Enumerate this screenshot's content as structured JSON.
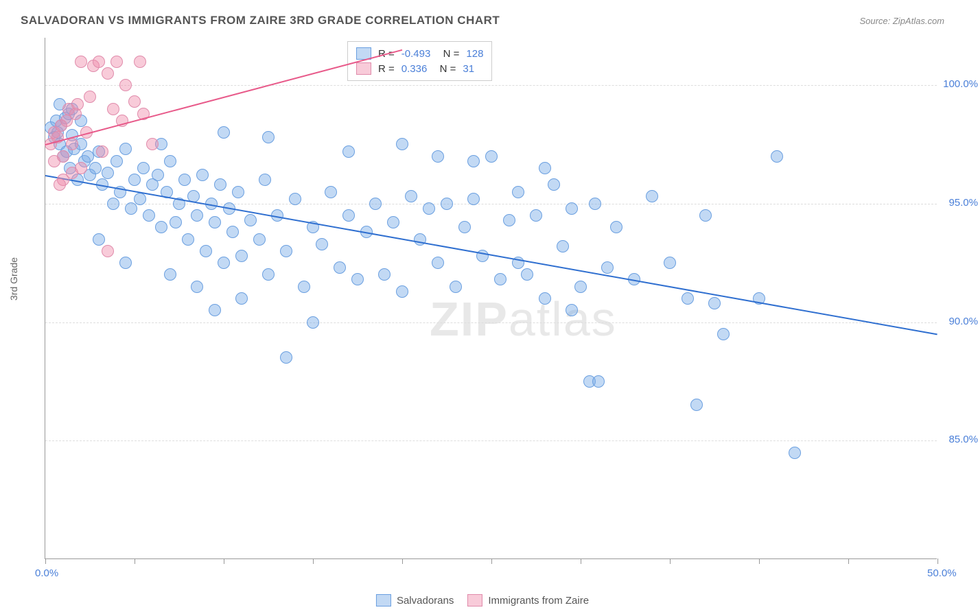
{
  "title": "SALVADORAN VS IMMIGRANTS FROM ZAIRE 3RD GRADE CORRELATION CHART",
  "source": "Source: ZipAtlas.com",
  "ylabel": "3rd Grade",
  "watermark_a": "ZIP",
  "watermark_b": "atlas",
  "chart": {
    "type": "scatter",
    "xlim": [
      0,
      50
    ],
    "ylim": [
      80,
      102
    ],
    "xticks": [
      0,
      5,
      10,
      15,
      20,
      25,
      30,
      35,
      40,
      45,
      50
    ],
    "xtick_labels": {
      "0": "0.0%",
      "50": "50.0%"
    },
    "yticks": [
      85,
      90,
      95,
      100
    ],
    "ytick_labels": [
      "85.0%",
      "90.0%",
      "95.0%",
      "100.0%"
    ],
    "background_color": "#ffffff",
    "grid_color": "#dddddd",
    "series": [
      {
        "name": "Salvadorans",
        "color_fill": "rgba(120,170,230,0.45)",
        "color_stroke": "#6a9fe0",
        "r": "-0.493",
        "n": "128",
        "trend": {
          "x1": 0,
          "y1": 96.2,
          "x2": 50,
          "y2": 89.5,
          "color": "#2f6fd0",
          "width": 2
        },
        "marker_radius": 9,
        "points": [
          [
            0.3,
            98.2
          ],
          [
            0.5,
            97.8
          ],
          [
            0.6,
            98.5
          ],
          [
            0.7,
            98.0
          ],
          [
            0.8,
            97.5
          ],
          [
            0.9,
            98.3
          ],
          [
            1.0,
            97.0
          ],
          [
            1.1,
            98.6
          ],
          [
            1.2,
            97.2
          ],
          [
            1.3,
            98.8
          ],
          [
            1.4,
            96.5
          ],
          [
            1.5,
            97.9
          ],
          [
            1.6,
            97.3
          ],
          [
            1.8,
            96.0
          ],
          [
            2.0,
            97.5
          ],
          [
            2.2,
            96.8
          ],
          [
            2.4,
            97.0
          ],
          [
            2.5,
            96.2
          ],
          [
            2.8,
            96.5
          ],
          [
            3.0,
            97.2
          ],
          [
            3.2,
            95.8
          ],
          [
            3.5,
            96.3
          ],
          [
            3.8,
            95.0
          ],
          [
            4.0,
            96.8
          ],
          [
            4.2,
            95.5
          ],
          [
            4.5,
            97.3
          ],
          [
            4.8,
            94.8
          ],
          [
            5.0,
            96.0
          ],
          [
            5.3,
            95.2
          ],
          [
            5.5,
            96.5
          ],
          [
            5.8,
            94.5
          ],
          [
            6.0,
            95.8
          ],
          [
            6.3,
            96.2
          ],
          [
            6.5,
            94.0
          ],
          [
            6.8,
            95.5
          ],
          [
            7.0,
            96.8
          ],
          [
            7.3,
            94.2
          ],
          [
            7.5,
            95.0
          ],
          [
            7.8,
            96.0
          ],
          [
            8.0,
            93.5
          ],
          [
            8.3,
            95.3
          ],
          [
            8.5,
            94.5
          ],
          [
            8.8,
            96.2
          ],
          [
            9.0,
            93.0
          ],
          [
            9.3,
            95.0
          ],
          [
            9.5,
            94.2
          ],
          [
            9.8,
            95.8
          ],
          [
            10.0,
            92.5
          ],
          [
            10.3,
            94.8
          ],
          [
            10.5,
            93.8
          ],
          [
            10.8,
            95.5
          ],
          [
            11.0,
            92.8
          ],
          [
            11.5,
            94.3
          ],
          [
            12.0,
            93.5
          ],
          [
            12.3,
            96.0
          ],
          [
            12.5,
            92.0
          ],
          [
            13.0,
            94.5
          ],
          [
            13.5,
            93.0
          ],
          [
            14.0,
            95.2
          ],
          [
            14.5,
            91.5
          ],
          [
            15.0,
            94.0
          ],
          [
            15.5,
            93.3
          ],
          [
            16.0,
            95.5
          ],
          [
            16.5,
            92.3
          ],
          [
            17.0,
            94.5
          ],
          [
            17.5,
            91.8
          ],
          [
            18.0,
            93.8
          ],
          [
            18.5,
            95.0
          ],
          [
            19.0,
            92.0
          ],
          [
            19.5,
            94.2
          ],
          [
            20.0,
            91.3
          ],
          [
            20.5,
            95.3
          ],
          [
            21.0,
            93.5
          ],
          [
            21.5,
            94.8
          ],
          [
            22.0,
            92.5
          ],
          [
            22.5,
            95.0
          ],
          [
            23.0,
            91.5
          ],
          [
            23.5,
            94.0
          ],
          [
            24.0,
            95.2
          ],
          [
            24.5,
            92.8
          ],
          [
            25.0,
            97.0
          ],
          [
            25.5,
            91.8
          ],
          [
            26.0,
            94.3
          ],
          [
            26.5,
            95.5
          ],
          [
            27.0,
            92.0
          ],
          [
            27.5,
            94.5
          ],
          [
            28.0,
            91.0
          ],
          [
            28.5,
            95.8
          ],
          [
            29.0,
            93.2
          ],
          [
            29.5,
            94.8
          ],
          [
            30.0,
            91.5
          ],
          [
            30.5,
            87.5
          ],
          [
            31.0,
            87.5
          ],
          [
            30.8,
            95.0
          ],
          [
            31.5,
            92.3
          ],
          [
            32.0,
            94.0
          ],
          [
            33.0,
            91.8
          ],
          [
            34.0,
            95.3
          ],
          [
            35.0,
            92.5
          ],
          [
            36.0,
            91.0
          ],
          [
            36.5,
            86.5
          ],
          [
            37.0,
            94.5
          ],
          [
            37.5,
            90.8
          ],
          [
            38.0,
            89.5
          ],
          [
            40.0,
            91.0
          ],
          [
            41.0,
            97.0
          ],
          [
            42.0,
            84.5
          ],
          [
            13.5,
            88.5
          ],
          [
            9.5,
            90.5
          ],
          [
            11.0,
            91.0
          ],
          [
            8.5,
            91.5
          ],
          [
            7.0,
            92.0
          ],
          [
            15.0,
            90.0
          ],
          [
            12.5,
            97.8
          ],
          [
            10.0,
            98.0
          ],
          [
            6.5,
            97.5
          ],
          [
            3.0,
            93.5
          ],
          [
            4.5,
            92.5
          ],
          [
            2.0,
            98.5
          ],
          [
            1.5,
            99.0
          ],
          [
            0.8,
            99.2
          ],
          [
            22.0,
            97.0
          ],
          [
            17.0,
            97.2
          ],
          [
            20.0,
            97.5
          ],
          [
            24.0,
            96.8
          ],
          [
            26.5,
            92.5
          ],
          [
            28.0,
            96.5
          ],
          [
            29.5,
            90.5
          ]
        ]
      },
      {
        "name": "Immigrants from Zaire",
        "color_fill": "rgba(240,140,170,0.45)",
        "color_stroke": "#e08bab",
        "r": "0.336",
        "n": "31",
        "trend": {
          "x1": 0,
          "y1": 97.5,
          "x2": 20,
          "y2": 101.5,
          "color": "#e85a8a",
          "width": 2
        },
        "marker_radius": 9,
        "points": [
          [
            0.3,
            97.5
          ],
          [
            0.5,
            98.0
          ],
          [
            0.7,
            97.8
          ],
          [
            0.9,
            98.3
          ],
          [
            1.0,
            97.0
          ],
          [
            1.2,
            98.5
          ],
          [
            1.3,
            99.0
          ],
          [
            1.5,
            97.5
          ],
          [
            1.7,
            98.8
          ],
          [
            1.8,
            99.2
          ],
          [
            2.0,
            101.0
          ],
          [
            2.3,
            98.0
          ],
          [
            2.5,
            99.5
          ],
          [
            2.7,
            100.8
          ],
          [
            3.0,
            101.0
          ],
          [
            3.2,
            97.2
          ],
          [
            3.5,
            100.5
          ],
          [
            3.8,
            99.0
          ],
          [
            4.0,
            101.0
          ],
          [
            4.3,
            98.5
          ],
          [
            4.5,
            100.0
          ],
          [
            5.0,
            99.3
          ],
          [
            5.3,
            101.0
          ],
          [
            5.5,
            98.8
          ],
          [
            3.5,
            93.0
          ],
          [
            1.0,
            96.0
          ],
          [
            2.0,
            96.5
          ],
          [
            0.5,
            96.8
          ],
          [
            1.5,
            96.3
          ],
          [
            0.8,
            95.8
          ],
          [
            6.0,
            97.5
          ]
        ]
      }
    ]
  },
  "legend": [
    {
      "label": "Salvadorans",
      "fill": "rgba(120,170,230,0.45)",
      "stroke": "#6a9fe0"
    },
    {
      "label": "Immigrants from Zaire",
      "fill": "rgba(240,140,170,0.45)",
      "stroke": "#e08bab"
    }
  ]
}
